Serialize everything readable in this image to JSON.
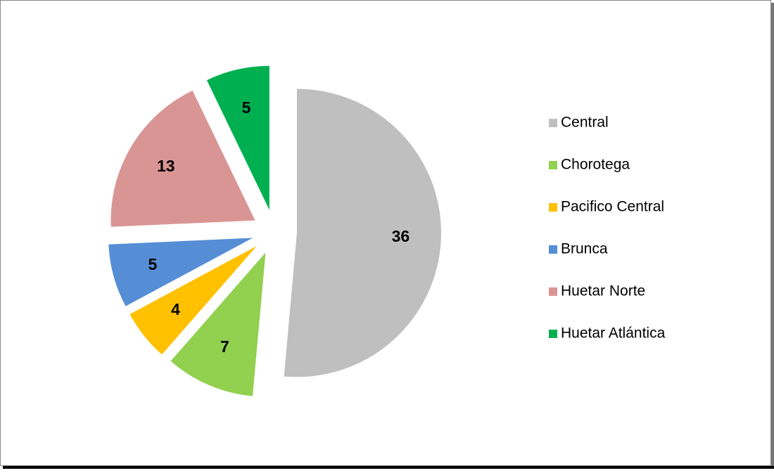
{
  "chart_data": {
    "type": "pie",
    "categories": [
      "Central",
      "Chorotega",
      "Pacifico Central",
      "Brunca",
      "Huetar Norte",
      "Huetar Atlántica"
    ],
    "values": [
      36,
      7,
      4,
      5,
      13,
      5
    ],
    "colors": [
      "#bfbfbf",
      "#92d050",
      "#ffc000",
      "#558ed5",
      "#d99594",
      "#00b050"
    ],
    "legend": "right"
  }
}
